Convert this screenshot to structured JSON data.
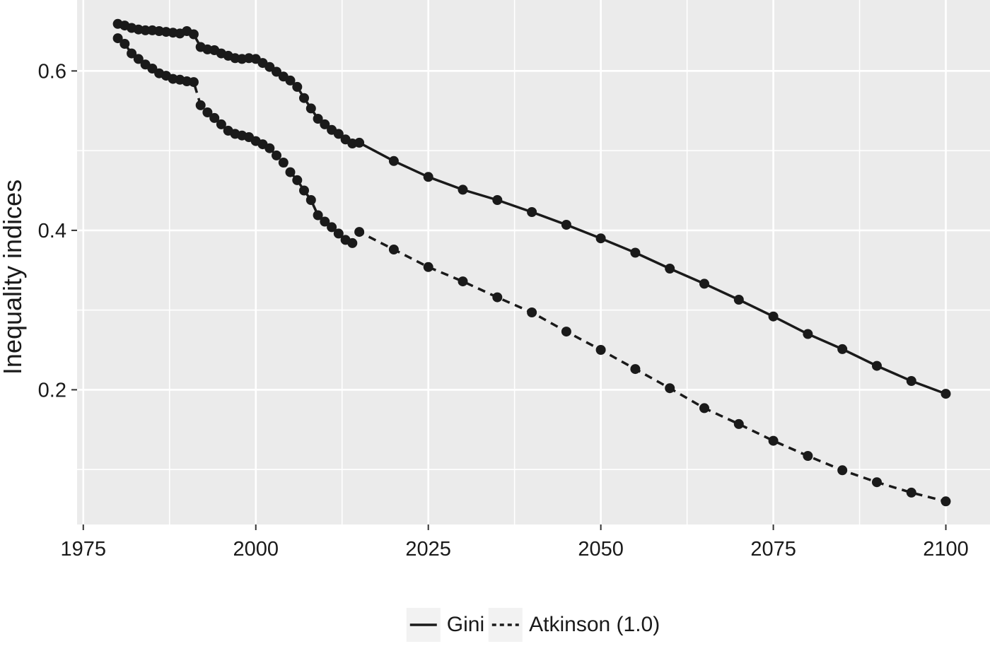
{
  "chart_data": {
    "type": "line",
    "title": "",
    "xlabel": "",
    "ylabel": "Inequality indices",
    "x_tick_labels": [
      "1975",
      "2000",
      "2025",
      "2050",
      "2075",
      "2100"
    ],
    "x_tick_values": [
      1975,
      2000,
      2025,
      2050,
      2075,
      2100
    ],
    "y_tick_labels": [
      "0.2",
      "0.4",
      "0.6"
    ],
    "y_tick_values": [
      0.2,
      0.4,
      0.6
    ],
    "x_minor_ticks": [
      1987.5,
      2012.5,
      2037.5,
      2062.5,
      2087.5
    ],
    "y_minor_ticks": [
      0.1,
      0.3,
      0.5,
      0.7
    ],
    "xlim": [
      1974.1,
      2106.4
    ],
    "ylim": [
      0.031,
      0.689
    ],
    "grid": "white major and minor gridlines on gray panel",
    "legend_position": "bottom-center",
    "colors": {
      "panel_bg": "#EBEBEB",
      "grid": "#FFFFFF",
      "series": "#1A1A1A",
      "legend_key_bg": "#F2F2F2",
      "tick_mark": "#333333",
      "axis_text": "#1A1A1A"
    },
    "series": [
      {
        "name": "Gini",
        "line": "solid",
        "marker": "circle",
        "x": [
          1980,
          1981,
          1982,
          1983,
          1984,
          1985,
          1986,
          1987,
          1988,
          1989,
          1990,
          1991,
          1992,
          1993,
          1994,
          1995,
          1996,
          1997,
          1998,
          1999,
          2000,
          2001,
          2002,
          2003,
          2004,
          2005,
          2006,
          2007,
          2008,
          2009,
          2010,
          2011,
          2012,
          2013,
          2014,
          2015,
          2020,
          2025,
          2030,
          2035,
          2040,
          2045,
          2050,
          2055,
          2060,
          2065,
          2070,
          2075,
          2080,
          2085,
          2090,
          2095,
          2100
        ],
        "y": [
          0.659,
          0.657,
          0.654,
          0.652,
          0.651,
          0.651,
          0.65,
          0.649,
          0.648,
          0.647,
          0.65,
          0.646,
          0.63,
          0.627,
          0.626,
          0.622,
          0.619,
          0.616,
          0.615,
          0.616,
          0.615,
          0.61,
          0.605,
          0.599,
          0.593,
          0.588,
          0.58,
          0.566,
          0.553,
          0.54,
          0.533,
          0.526,
          0.521,
          0.514,
          0.509,
          0.51,
          0.487,
          0.467,
          0.451,
          0.438,
          0.423,
          0.407,
          0.39,
          0.372,
          0.352,
          0.333,
          0.313,
          0.292,
          0.27,
          0.251,
          0.23,
          0.211,
          0.195
        ]
      },
      {
        "name": "Atkinson (1.0)",
        "line": "dashed",
        "marker": "circle",
        "x": [
          1980,
          1981,
          1982,
          1983,
          1984,
          1985,
          1986,
          1987,
          1988,
          1989,
          1990,
          1991,
          1992,
          1993,
          1994,
          1995,
          1996,
          1997,
          1998,
          1999,
          2000,
          2001,
          2002,
          2003,
          2004,
          2005,
          2006,
          2007,
          2008,
          2009,
          2010,
          2011,
          2012,
          2013,
          2014,
          2015,
          2020,
          2025,
          2030,
          2035,
          2040,
          2045,
          2050,
          2055,
          2060,
          2065,
          2070,
          2075,
          2080,
          2085,
          2090,
          2095,
          2100
        ],
        "y": [
          0.641,
          0.634,
          0.622,
          0.615,
          0.608,
          0.603,
          0.597,
          0.594,
          0.59,
          0.589,
          0.587,
          0.586,
          0.557,
          0.548,
          0.541,
          0.533,
          0.525,
          0.521,
          0.519,
          0.517,
          0.512,
          0.508,
          0.503,
          0.494,
          0.485,
          0.473,
          0.463,
          0.45,
          0.438,
          0.419,
          0.411,
          0.404,
          0.396,
          0.388,
          0.384,
          0.398,
          0.376,
          0.354,
          0.336,
          0.316,
          0.297,
          0.273,
          0.25,
          0.226,
          0.202,
          0.177,
          0.157,
          0.136,
          0.117,
          0.099,
          0.084,
          0.071,
          0.06
        ]
      }
    ]
  },
  "legend": {
    "entries": [
      {
        "label": "Gini",
        "line": "solid"
      },
      {
        "label": "Atkinson (1.0)",
        "line": "dashed"
      }
    ]
  }
}
